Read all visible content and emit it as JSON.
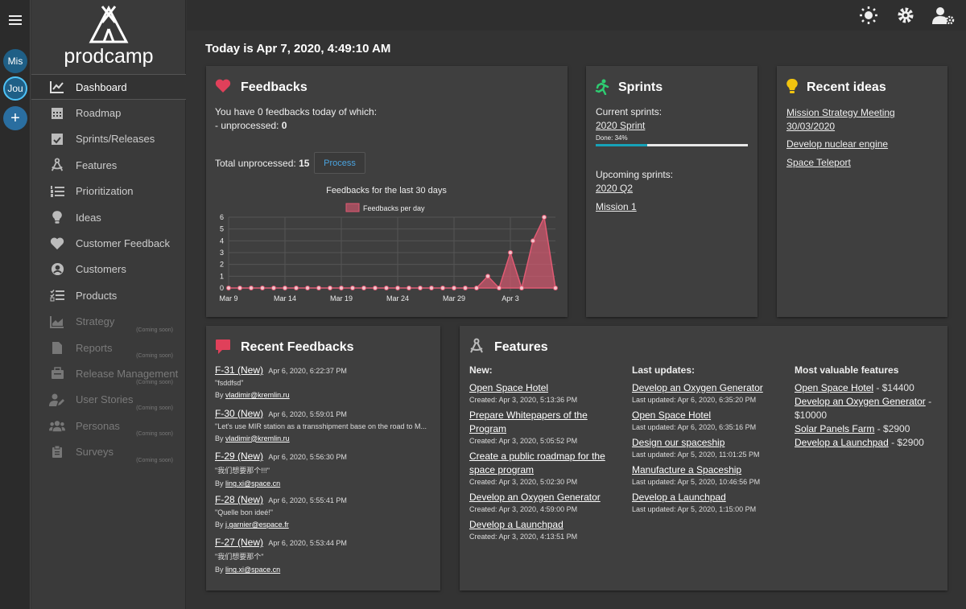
{
  "workspaces": [
    {
      "label": "Mis"
    },
    {
      "label": "Jou"
    },
    {
      "label": "+"
    }
  ],
  "brand": {
    "name": "prodcamp"
  },
  "nav": {
    "items": [
      {
        "label": "Dashboard",
        "icon": "chart-line-icon"
      },
      {
        "label": "Roadmap",
        "icon": "calendar-icon"
      },
      {
        "label": "Sprints/Releases",
        "icon": "calendar-check-icon"
      },
      {
        "label": "Features",
        "icon": "drafting-compass-icon"
      },
      {
        "label": "Prioritization",
        "icon": "list-ol-icon"
      },
      {
        "label": "Ideas",
        "icon": "lightbulb-icon"
      },
      {
        "label": "Customer Feedback",
        "icon": "heart-icon"
      },
      {
        "label": "Customers",
        "icon": "user-circle-icon"
      },
      {
        "label": "Products",
        "icon": "tasks-icon"
      },
      {
        "label": "Strategy",
        "icon": "chart-area-icon",
        "soon": "(Coming soon)"
      },
      {
        "label": "Reports",
        "icon": "file-icon",
        "soon": "(Coming soon)"
      },
      {
        "label": "Release Management",
        "icon": "briefcase-icon",
        "soon": "(Coming soon)"
      },
      {
        "label": "User Stories",
        "icon": "user-edit-icon",
        "soon": "(Coming soon)"
      },
      {
        "label": "Personas",
        "icon": "users-icon",
        "soon": "(Coming soon)"
      },
      {
        "label": "Surveys",
        "icon": "clipboard-icon",
        "soon": "(Coming soon)"
      }
    ]
  },
  "header": {
    "today": "Today is Apr 7, 2020, 4:49:10 AM"
  },
  "feedbacks": {
    "title": "Feedbacks",
    "line1": "You have 0 feedbacks today of which:",
    "line2_prefix": "- unprocessed: ",
    "line2_value": "0",
    "total_prefix": "Total unprocessed: ",
    "total_value": "15",
    "process_label": "Process",
    "accent": "#e0405a"
  },
  "chart_data": {
    "type": "area",
    "title": "Feedbacks for the last 30 days",
    "legend": "Feedbacks per day",
    "legend_position": "top",
    "x_tick_labels": [
      "Mar 9",
      "Mar 14",
      "Mar 19",
      "Mar 24",
      "Mar 29",
      "Apr 3"
    ],
    "x": [
      "Mar 9",
      "Mar 10",
      "Mar 11",
      "Mar 12",
      "Mar 13",
      "Mar 14",
      "Mar 15",
      "Mar 16",
      "Mar 17",
      "Mar 18",
      "Mar 19",
      "Mar 20",
      "Mar 21",
      "Mar 22",
      "Mar 23",
      "Mar 24",
      "Mar 25",
      "Mar 26",
      "Mar 27",
      "Mar 28",
      "Mar 29",
      "Mar 30",
      "Mar 31",
      "Apr 1",
      "Apr 2",
      "Apr 3",
      "Apr 4",
      "Apr 5",
      "Apr 6",
      "Apr 7"
    ],
    "values": [
      0,
      0,
      0,
      0,
      0,
      0,
      0,
      0,
      0,
      0,
      0,
      0,
      0,
      0,
      0,
      0,
      0,
      0,
      0,
      0,
      0,
      0,
      0,
      1,
      0,
      3,
      0,
      4,
      6,
      0
    ],
    "ylim": [
      0,
      6
    ],
    "y_ticks": [
      0,
      1,
      2,
      3,
      4,
      5,
      6
    ],
    "grid": true,
    "color": "#e05a73"
  },
  "sprints": {
    "title": "Sprints",
    "current_label": "Current sprints:",
    "current": [
      {
        "name": "2020 Sprint",
        "done_text": "Done: 34%",
        "done": 0.34
      }
    ],
    "upcoming_label": "Upcoming sprints:",
    "upcoming": [
      "2020 Q2",
      "Mission 1"
    ],
    "accent": "#2ecc71"
  },
  "ideas": {
    "title": "Recent ideas",
    "items": [
      "Mission Strategy Meeting 30/03/2020",
      "Develop nuclear engine",
      "Space Teleport"
    ],
    "accent": "#f1c40f"
  },
  "recent_feedbacks": {
    "title": "Recent Feedbacks",
    "by_prefix": "By ",
    "items": [
      {
        "id": "F-31 (New)",
        "date": "Apr 6, 2020, 6:22:37 PM",
        "text": "\"fsddfsd\"",
        "author": "vladimir@kremlin.ru"
      },
      {
        "id": "F-30 (New)",
        "date": "Apr 6, 2020, 5:59:01 PM",
        "text": "\"Let's use MIR station as a transshipment base on the road to M...",
        "author": "vladimir@kremlin.ru"
      },
      {
        "id": "F-29 (New)",
        "date": "Apr 6, 2020, 5:56:30 PM",
        "text": "\"我们想要那个!!!\"",
        "author": "ling.xi@space.cn"
      },
      {
        "id": "F-28 (New)",
        "date": "Apr 6, 2020, 5:55:41 PM",
        "text": "\"Quelle bon ideé!\"",
        "author": "j.garnier@espace.fr"
      },
      {
        "id": "F-27 (New)",
        "date": "Apr 6, 2020, 5:53:44 PM",
        "text": "\"我们想要那个\"",
        "author": "ling.xi@space.cn"
      }
    ]
  },
  "features": {
    "title": "Features",
    "new_label": "New:",
    "new": [
      {
        "name": "Open Space Hotel",
        "meta": "Created: Apr 3, 2020, 5:13:36 PM"
      },
      {
        "name": "Prepare Whitepapers of the Program",
        "meta": "Created: Apr 3, 2020, 5:05:52 PM"
      },
      {
        "name": "Create a public roadmap for the space program",
        "meta": "Created: Apr 3, 2020, 5:02:30 PM"
      },
      {
        "name": "Develop an Oxygen Generator",
        "meta": "Created: Apr 3, 2020, 4:59:00 PM"
      },
      {
        "name": "Develop a Launchpad",
        "meta": "Created: Apr 3, 2020, 4:13:51 PM"
      }
    ],
    "updates_label": "Last updates:",
    "updates": [
      {
        "name": "Develop an Oxygen Generator",
        "meta": "Last updated: Apr 6, 2020, 6:35:20 PM"
      },
      {
        "name": "Open Space Hotel",
        "meta": "Last updated: Apr 6, 2020, 6:35:16 PM"
      },
      {
        "name": "Design our spaceship",
        "meta": "Last updated: Apr 5, 2020, 11:01:25 PM"
      },
      {
        "name": "Manufacture a Spaceship",
        "meta": "Last updated: Apr 5, 2020, 10:46:56 PM"
      },
      {
        "name": "Develop a Launchpad",
        "meta": "Last updated: Apr 5, 2020, 1:15:00 PM"
      }
    ],
    "valuable_label": "Most valuable features",
    "valuable": [
      {
        "name": "Open Space Hotel",
        "value": " - $14400"
      },
      {
        "name": "Develop an Oxygen Generator",
        "value": " - $10000"
      },
      {
        "name": "Solar Panels Farm",
        "value": " - $2900"
      },
      {
        "name": "Develop a Launchpad",
        "value": " - $2900"
      }
    ]
  }
}
